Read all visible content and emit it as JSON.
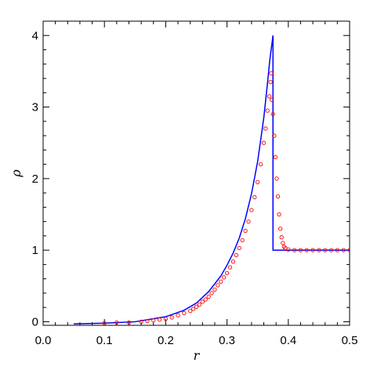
{
  "chart_data": {
    "type": "line",
    "title": "",
    "xlabel": "r",
    "ylabel": "ρ",
    "xlim": [
      0.0,
      0.5
    ],
    "ylim": [
      -0.05,
      4.2
    ],
    "xticks": [
      "0.0",
      "0.1",
      "0.2",
      "0.3",
      "0.4",
      "0.5"
    ],
    "yticks": [
      "0",
      "1",
      "2",
      "3",
      "4"
    ],
    "xtick_values": [
      0.0,
      0.1,
      0.2,
      0.3,
      0.4,
      0.5
    ],
    "ytick_values": [
      0,
      1,
      2,
      3,
      4
    ],
    "grid": false,
    "legend": "none",
    "series": [
      {
        "kind": "line",
        "color": "#0000ff",
        "x": [
          0.05,
          0.1,
          0.15,
          0.2,
          0.23,
          0.25,
          0.27,
          0.29,
          0.3,
          0.31,
          0.32,
          0.33,
          0.34,
          0.35,
          0.36,
          0.365,
          0.37,
          0.375,
          0.375,
          0.5
        ],
        "y": [
          -0.03,
          -0.02,
          0.0,
          0.07,
          0.16,
          0.26,
          0.42,
          0.64,
          0.79,
          0.96,
          1.17,
          1.44,
          1.79,
          2.24,
          2.85,
          3.25,
          3.67,
          4.0,
          1.0,
          1.0
        ]
      },
      {
        "kind": "scatter",
        "color": "#ff0000",
        "marker": "open-circle",
        "points": [
          [
            0.1,
            -0.02
          ],
          [
            0.12,
            -0.01
          ],
          [
            0.14,
            -0.01
          ],
          [
            0.16,
            0.0
          ],
          [
            0.17,
            0.01
          ],
          [
            0.18,
            0.02
          ],
          [
            0.19,
            0.03
          ],
          [
            0.2,
            0.04
          ],
          [
            0.21,
            0.06
          ],
          [
            0.22,
            0.09
          ],
          [
            0.23,
            0.12
          ],
          [
            0.24,
            0.15
          ],
          [
            0.245,
            0.18
          ],
          [
            0.25,
            0.21
          ],
          [
            0.255,
            0.24
          ],
          [
            0.26,
            0.28
          ],
          [
            0.265,
            0.31
          ],
          [
            0.27,
            0.35
          ],
          [
            0.275,
            0.4
          ],
          [
            0.28,
            0.45
          ],
          [
            0.285,
            0.51
          ],
          [
            0.29,
            0.56
          ],
          [
            0.295,
            0.62
          ],
          [
            0.3,
            0.68
          ],
          [
            0.305,
            0.76
          ],
          [
            0.31,
            0.84
          ],
          [
            0.315,
            0.93
          ],
          [
            0.32,
            1.03
          ],
          [
            0.325,
            1.14
          ],
          [
            0.33,
            1.27
          ],
          [
            0.335,
            1.4
          ],
          [
            0.34,
            1.56
          ],
          [
            0.345,
            1.74
          ],
          [
            0.35,
            1.95
          ],
          [
            0.355,
            2.2
          ],
          [
            0.36,
            2.5
          ],
          [
            0.363,
            2.7
          ],
          [
            0.366,
            2.95
          ],
          [
            0.369,
            3.15
          ],
          [
            0.371,
            3.35
          ],
          [
            0.372,
            3.47
          ],
          [
            0.373,
            3.1
          ],
          [
            0.375,
            2.9
          ],
          [
            0.377,
            2.6
          ],
          [
            0.379,
            2.3
          ],
          [
            0.381,
            2.0
          ],
          [
            0.383,
            1.75
          ],
          [
            0.385,
            1.5
          ],
          [
            0.387,
            1.3
          ],
          [
            0.389,
            1.18
          ],
          [
            0.391,
            1.1
          ],
          [
            0.393,
            1.05
          ],
          [
            0.395,
            1.03
          ],
          [
            0.4,
            1.01
          ],
          [
            0.41,
            1.0
          ],
          [
            0.42,
            1.0
          ],
          [
            0.43,
            1.0
          ],
          [
            0.44,
            1.0
          ],
          [
            0.45,
            1.0
          ],
          [
            0.46,
            1.0
          ],
          [
            0.47,
            1.0
          ],
          [
            0.48,
            1.0
          ],
          [
            0.49,
            1.0
          ],
          [
            0.5,
            1.0
          ]
        ]
      }
    ]
  }
}
